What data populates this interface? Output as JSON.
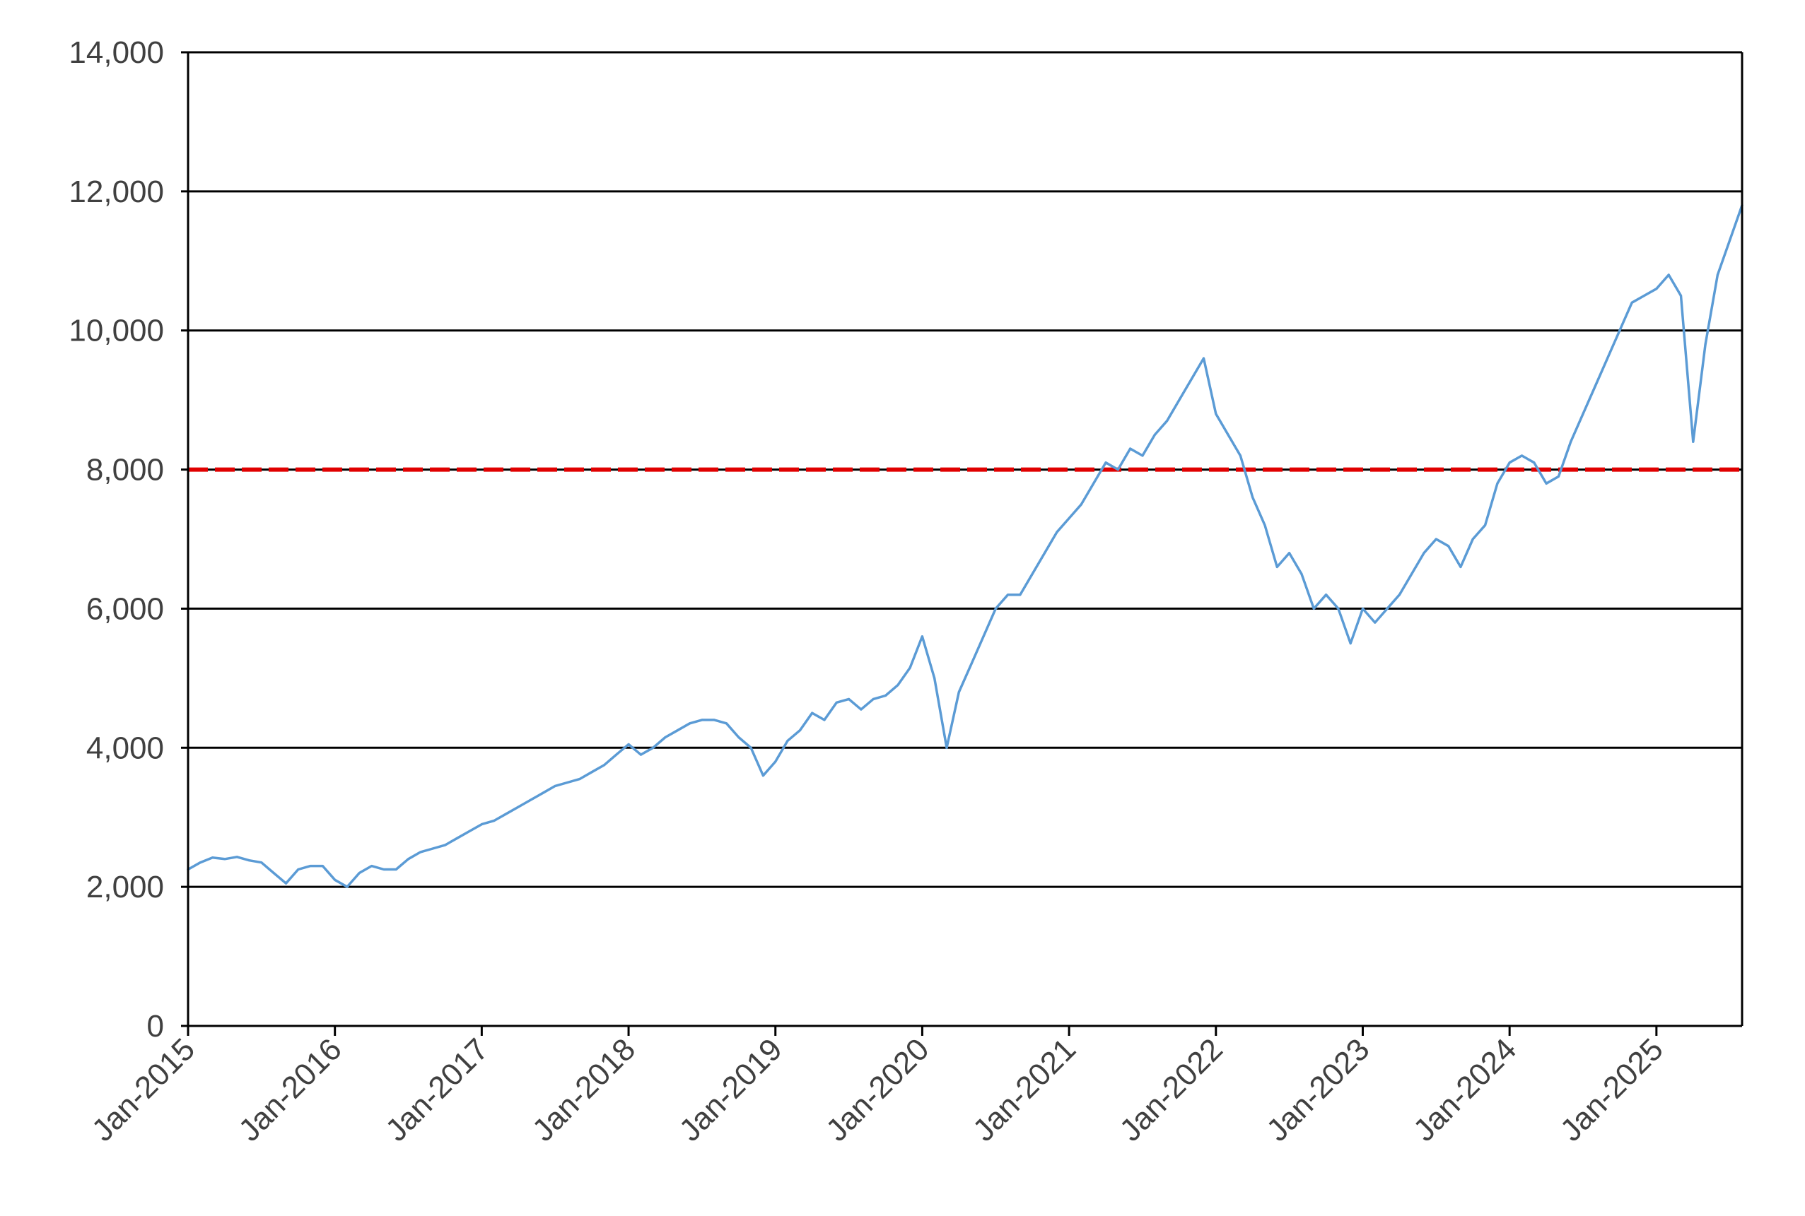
{
  "colors": {
    "series": "#5b9bd5",
    "reference_line": "#e00000",
    "gridline": "#000000",
    "axis": "#000000",
    "text": "#404040",
    "background": "#ffffff"
  },
  "chart_data": {
    "type": "line",
    "title": "",
    "xlabel": "",
    "ylabel": "",
    "ylim": [
      0,
      14000
    ],
    "xlim": [
      "2015-01",
      "2025-08"
    ],
    "yticks": [
      0,
      2000,
      4000,
      6000,
      8000,
      10000,
      12000,
      14000
    ],
    "ytick_labels": [
      "0",
      "2,000",
      "4,000",
      "6,000",
      "8,000",
      "10,000",
      "12,000",
      "14,000"
    ],
    "xticks": [
      "2015-01",
      "2016-01",
      "2017-01",
      "2018-01",
      "2019-01",
      "2020-01",
      "2021-01",
      "2022-01",
      "2023-01",
      "2024-01",
      "2025-01"
    ],
    "xtick_labels": [
      "Jan-2015",
      "Jan-2016",
      "Jan-2017",
      "Jan-2018",
      "Jan-2019",
      "Jan-2020",
      "Jan-2021",
      "Jan-2022",
      "Jan-2023",
      "Jan-2024",
      "Jan-2025"
    ],
    "grid": "horizontal",
    "legend": "none",
    "reference_line": {
      "value": 8000,
      "style": "dashed"
    },
    "series": [
      {
        "x": [
          "2015-01",
          "2015-02",
          "2015-03",
          "2015-04",
          "2015-05",
          "2015-06",
          "2015-07",
          "2015-08",
          "2015-09",
          "2015-10",
          "2015-11",
          "2015-12",
          "2016-01",
          "2016-02",
          "2016-03",
          "2016-04",
          "2016-05",
          "2016-06",
          "2016-07",
          "2016-08",
          "2016-09",
          "2016-10",
          "2016-11",
          "2016-12",
          "2017-01",
          "2017-02",
          "2017-03",
          "2017-04",
          "2017-05",
          "2017-06",
          "2017-07",
          "2017-08",
          "2017-09",
          "2017-10",
          "2017-11",
          "2017-12",
          "2018-01",
          "2018-02",
          "2018-03",
          "2018-04",
          "2018-05",
          "2018-06",
          "2018-07",
          "2018-08",
          "2018-09",
          "2018-10",
          "2018-11",
          "2018-12",
          "2019-01",
          "2019-02",
          "2019-03",
          "2019-04",
          "2019-05",
          "2019-06",
          "2019-07",
          "2019-08",
          "2019-09",
          "2019-10",
          "2019-11",
          "2019-12",
          "2020-01",
          "2020-02",
          "2020-03",
          "2020-04",
          "2020-05",
          "2020-06",
          "2020-07",
          "2020-08",
          "2020-09",
          "2020-10",
          "2020-11",
          "2020-12",
          "2021-01",
          "2021-02",
          "2021-03",
          "2021-04",
          "2021-05",
          "2021-06",
          "2021-07",
          "2021-08",
          "2021-09",
          "2021-10",
          "2021-11",
          "2021-12",
          "2022-01",
          "2022-02",
          "2022-03",
          "2022-04",
          "2022-05",
          "2022-06",
          "2022-07",
          "2022-08",
          "2022-09",
          "2022-10",
          "2022-11",
          "2022-12",
          "2023-01",
          "2023-02",
          "2023-03",
          "2023-04",
          "2023-05",
          "2023-06",
          "2023-07",
          "2023-08",
          "2023-09",
          "2023-10",
          "2023-11",
          "2023-12",
          "2024-01",
          "2024-02",
          "2024-03",
          "2024-04",
          "2024-05",
          "2024-06",
          "2024-07",
          "2024-08",
          "2024-09",
          "2024-10",
          "2024-11",
          "2024-12",
          "2025-01",
          "2025-02",
          "2025-03",
          "2025-04",
          "2025-05",
          "2025-06",
          "2025-07",
          "2025-08"
        ],
        "values": [
          2250,
          2350,
          2420,
          2400,
          2430,
          2380,
          2350,
          2200,
          2050,
          2250,
          2300,
          2300,
          2100,
          2000,
          2200,
          2300,
          2250,
          2250,
          2400,
          2500,
          2550,
          2600,
          2700,
          2800,
          2900,
          2950,
          3050,
          3150,
          3250,
          3350,
          3450,
          3500,
          3550,
          3650,
          3750,
          3900,
          4050,
          3900,
          4000,
          4150,
          4250,
          4350,
          4400,
          4400,
          4350,
          4150,
          4000,
          3600,
          3800,
          4100,
          4250,
          4500,
          4400,
          4650,
          4700,
          4550,
          4700,
          4750,
          4900,
          5150,
          5600,
          5000,
          4000,
          4800,
          5200,
          5600,
          6000,
          6200,
          6200,
          6500,
          6800,
          7100,
          7300,
          7500,
          7800,
          8100,
          8000,
          8300,
          8200,
          8500,
          8700,
          9000,
          9300,
          9600,
          8800,
          8500,
          8200,
          7600,
          7200,
          6600,
          6800,
          6500,
          6000,
          6200,
          6000,
          5500,
          6000,
          5800,
          6000,
          6200,
          6500,
          6800,
          7000,
          6900,
          6600,
          7000,
          7200,
          7800,
          8100,
          8200,
          8100,
          7800,
          7900,
          8400,
          8800,
          9200,
          9600,
          10000,
          10400,
          10500,
          10600,
          10800,
          10500,
          8400,
          9800,
          10800,
          11300,
          11800
        ]
      }
    ]
  }
}
